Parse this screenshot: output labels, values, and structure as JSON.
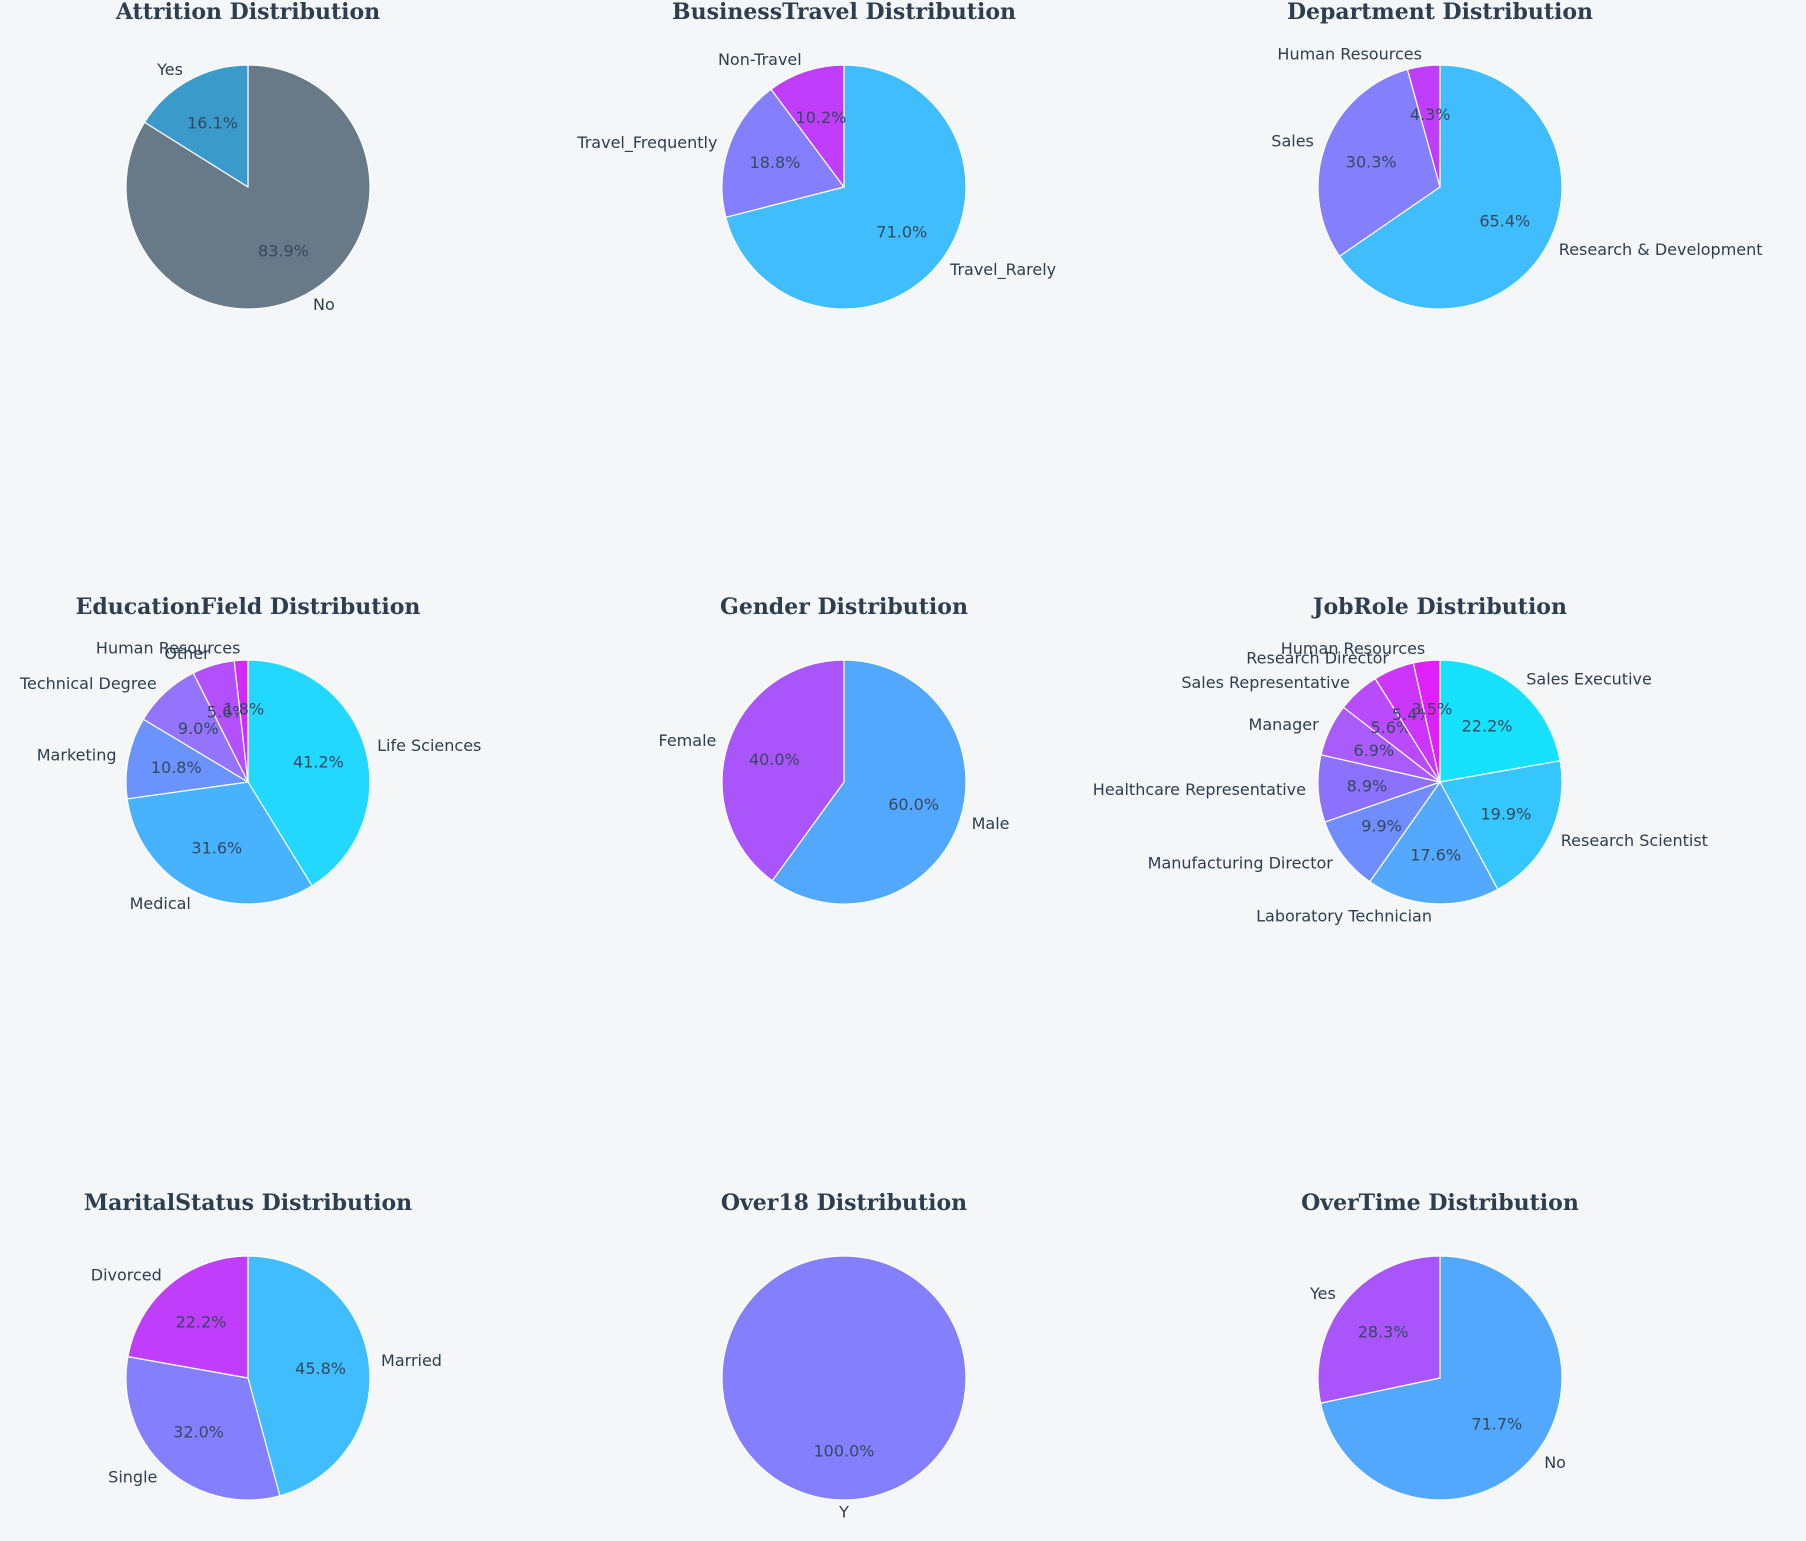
{
  "colors": {
    "background": "#f5f6f8",
    "text": "#2c3e50",
    "wedge_edge": "#ffffff"
  },
  "chart_data": [
    {
      "type": "pie",
      "title": "Attrition Distribution",
      "categories": [
        "No",
        "Yes"
      ],
      "values": [
        83.9,
        16.1
      ],
      "pct_labels": [
        "83.9%",
        "16.1%"
      ],
      "colors": [
        "#687a87",
        "#3a9bcb"
      ]
    },
    {
      "type": "pie",
      "title": "BusinessTravel Distribution",
      "categories": [
        "Travel_Rarely",
        "Travel_Frequently",
        "Non-Travel"
      ],
      "values": [
        71.0,
        18.8,
        10.2
      ],
      "pct_labels": [
        "71.0%",
        "18.8%",
        "10.2%"
      ],
      "colors": [
        "#3fbdfd",
        "#8480fd",
        "#bf3dfb"
      ]
    },
    {
      "type": "pie",
      "title": "Department Distribution",
      "categories": [
        "Research & Development",
        "Sales",
        "Human Resources"
      ],
      "values": [
        65.4,
        30.3,
        4.3
      ],
      "pct_labels": [
        "65.4%",
        "30.3%",
        "4.3%"
      ],
      "colors": [
        "#3fbdfd",
        "#8480fd",
        "#bf3dfb"
      ]
    },
    {
      "type": "pie",
      "title": "EducationField Distribution",
      "categories": [
        "Life Sciences",
        "Medical",
        "Marketing",
        "Technical Degree",
        "Other",
        "Human Resources"
      ],
      "values": [
        41.2,
        31.6,
        10.8,
        9.0,
        5.6,
        1.8
      ],
      "pct_labels": [
        "41.2%",
        "31.6%",
        "10.8%",
        "9.0%",
        "5.6%",
        "1.8%"
      ],
      "colors": [
        "#22d8fe",
        "#47b2fd",
        "#6a93fd",
        "#9473fd",
        "#b34ffc",
        "#d22afb"
      ]
    },
    {
      "type": "pie",
      "title": "Gender Distribution",
      "categories": [
        "Male",
        "Female"
      ],
      "values": [
        60.0,
        40.0
      ],
      "pct_labels": [
        "60.0%",
        "40.0%"
      ],
      "colors": [
        "#52a8fd",
        "#a955fb"
      ]
    },
    {
      "type": "pie",
      "title": "JobRole Distribution",
      "categories": [
        "Sales Executive",
        "Research Scientist",
        "Laboratory Technician",
        "Manufacturing Director",
        "Healthcare Representative",
        "Manager",
        "Sales Representative",
        "Research Director",
        "Human Resources"
      ],
      "values": [
        22.2,
        19.9,
        17.6,
        9.9,
        8.9,
        6.9,
        5.6,
        5.4,
        3.5
      ],
      "pct_labels": [
        "22.2%",
        "19.9%",
        "17.6%",
        "9.9%",
        "8.9%",
        "6.9%",
        "5.6%",
        "5.4%",
        "3.5%"
      ],
      "colors": [
        "#17e2fe",
        "#35c6fd",
        "#52a9fd",
        "#6f8dfd",
        "#8c71fd",
        "#a95bfc",
        "#b94bfc",
        "#cc36fb",
        "#e01ffa"
      ]
    },
    {
      "type": "pie",
      "title": "MaritalStatus Distribution",
      "categories": [
        "Married",
        "Single",
        "Divorced"
      ],
      "values": [
        45.8,
        32.0,
        22.2
      ],
      "pct_labels": [
        "45.8%",
        "32.0%",
        "22.2%"
      ],
      "colors": [
        "#3fbdfd",
        "#8480fd",
        "#bf3dfb"
      ]
    },
    {
      "type": "pie",
      "title": "Over18 Distribution",
      "categories": [
        "Y"
      ],
      "values": [
        100.0
      ],
      "pct_labels": [
        "100.0%"
      ],
      "colors": [
        "#8480fd"
      ]
    },
    {
      "type": "pie",
      "title": "OverTime Distribution",
      "categories": [
        "No",
        "Yes"
      ],
      "values": [
        71.7,
        28.3
      ],
      "pct_labels": [
        "71.7%",
        "28.3%"
      ],
      "colors": [
        "#52a8fd",
        "#a955fb"
      ]
    }
  ]
}
